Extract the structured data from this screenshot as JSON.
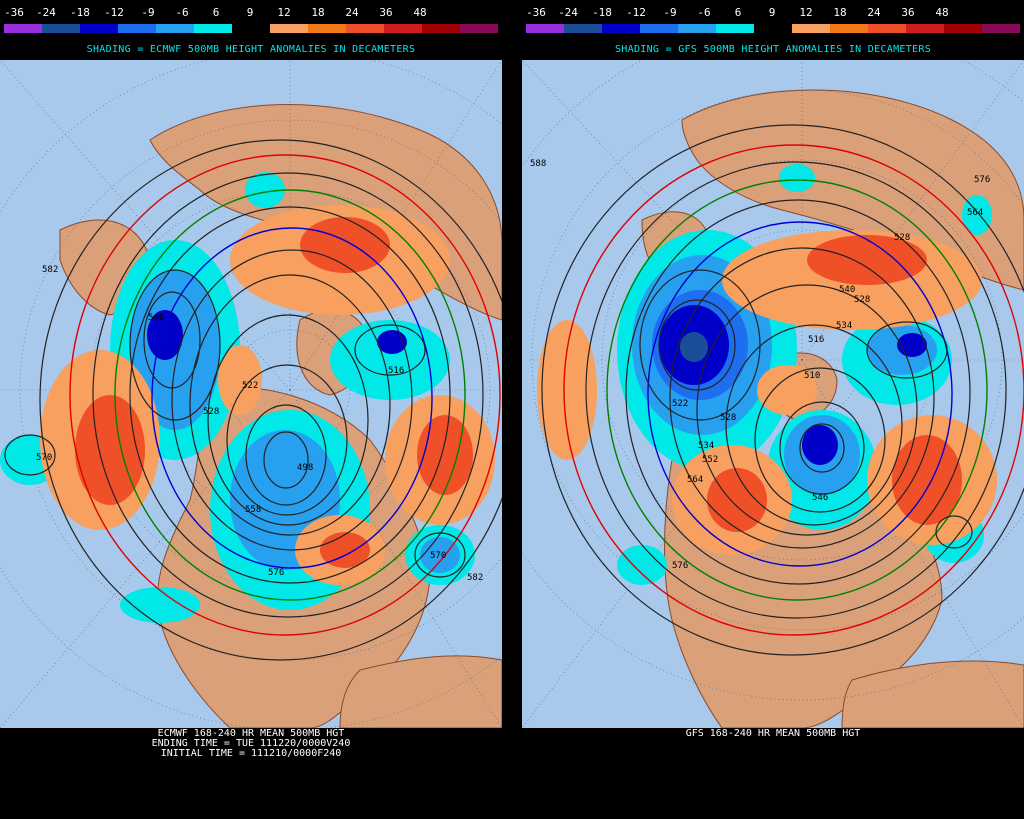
{
  "scale": {
    "labels": [
      "-36",
      "-24",
      "-18",
      "-12",
      "-9",
      "-6",
      "6",
      "9",
      "12",
      "18",
      "24",
      "36",
      "48"
    ],
    "colors": [
      "#9a2fe0",
      "#1a4e98",
      "#0000c8",
      "#1e6ef0",
      "#28a0f0",
      "#00e8e8",
      "#000000",
      "#f8a060",
      "#f07818",
      "#f05028",
      "#d01e1e",
      "#a00000",
      "#8a0a5a"
    ]
  },
  "colors": {
    "ocean": "#a8c8ec",
    "land": "#d9a07a",
    "land_edge": "#8b4a2a",
    "contour": "#222222",
    "contour_546": "#0000d0",
    "contour_552": "#008000",
    "contour_570": "#e00000"
  },
  "panels": [
    {
      "title": "SHADING = ECMWF 500MB HEIGHT ANOMALIES IN DECAMETERS",
      "caption": [
        "ECMWF 168-240 HR MEAN 500MB HGT",
        "ENDING TIME = TUE 111220/0000V240",
        "INITIAL TIME = 111210/0000F240"
      ],
      "contour_labels": [
        "582",
        "570",
        "546",
        "528",
        "522",
        "498",
        "516",
        "558",
        "570",
        "576",
        "582"
      ]
    },
    {
      "title": "SHADING = GFS 500MB HEIGHT ANOMALIES IN DECAMETERS",
      "caption": [
        "GFS 168-240 HR MEAN 500MB HGT"
      ],
      "contour_labels": [
        "588",
        "576",
        "564",
        "528",
        "528",
        "540",
        "534",
        "516",
        "510",
        "528",
        "522",
        "552",
        "564",
        "576",
        "546",
        "534"
      ]
    }
  ]
}
